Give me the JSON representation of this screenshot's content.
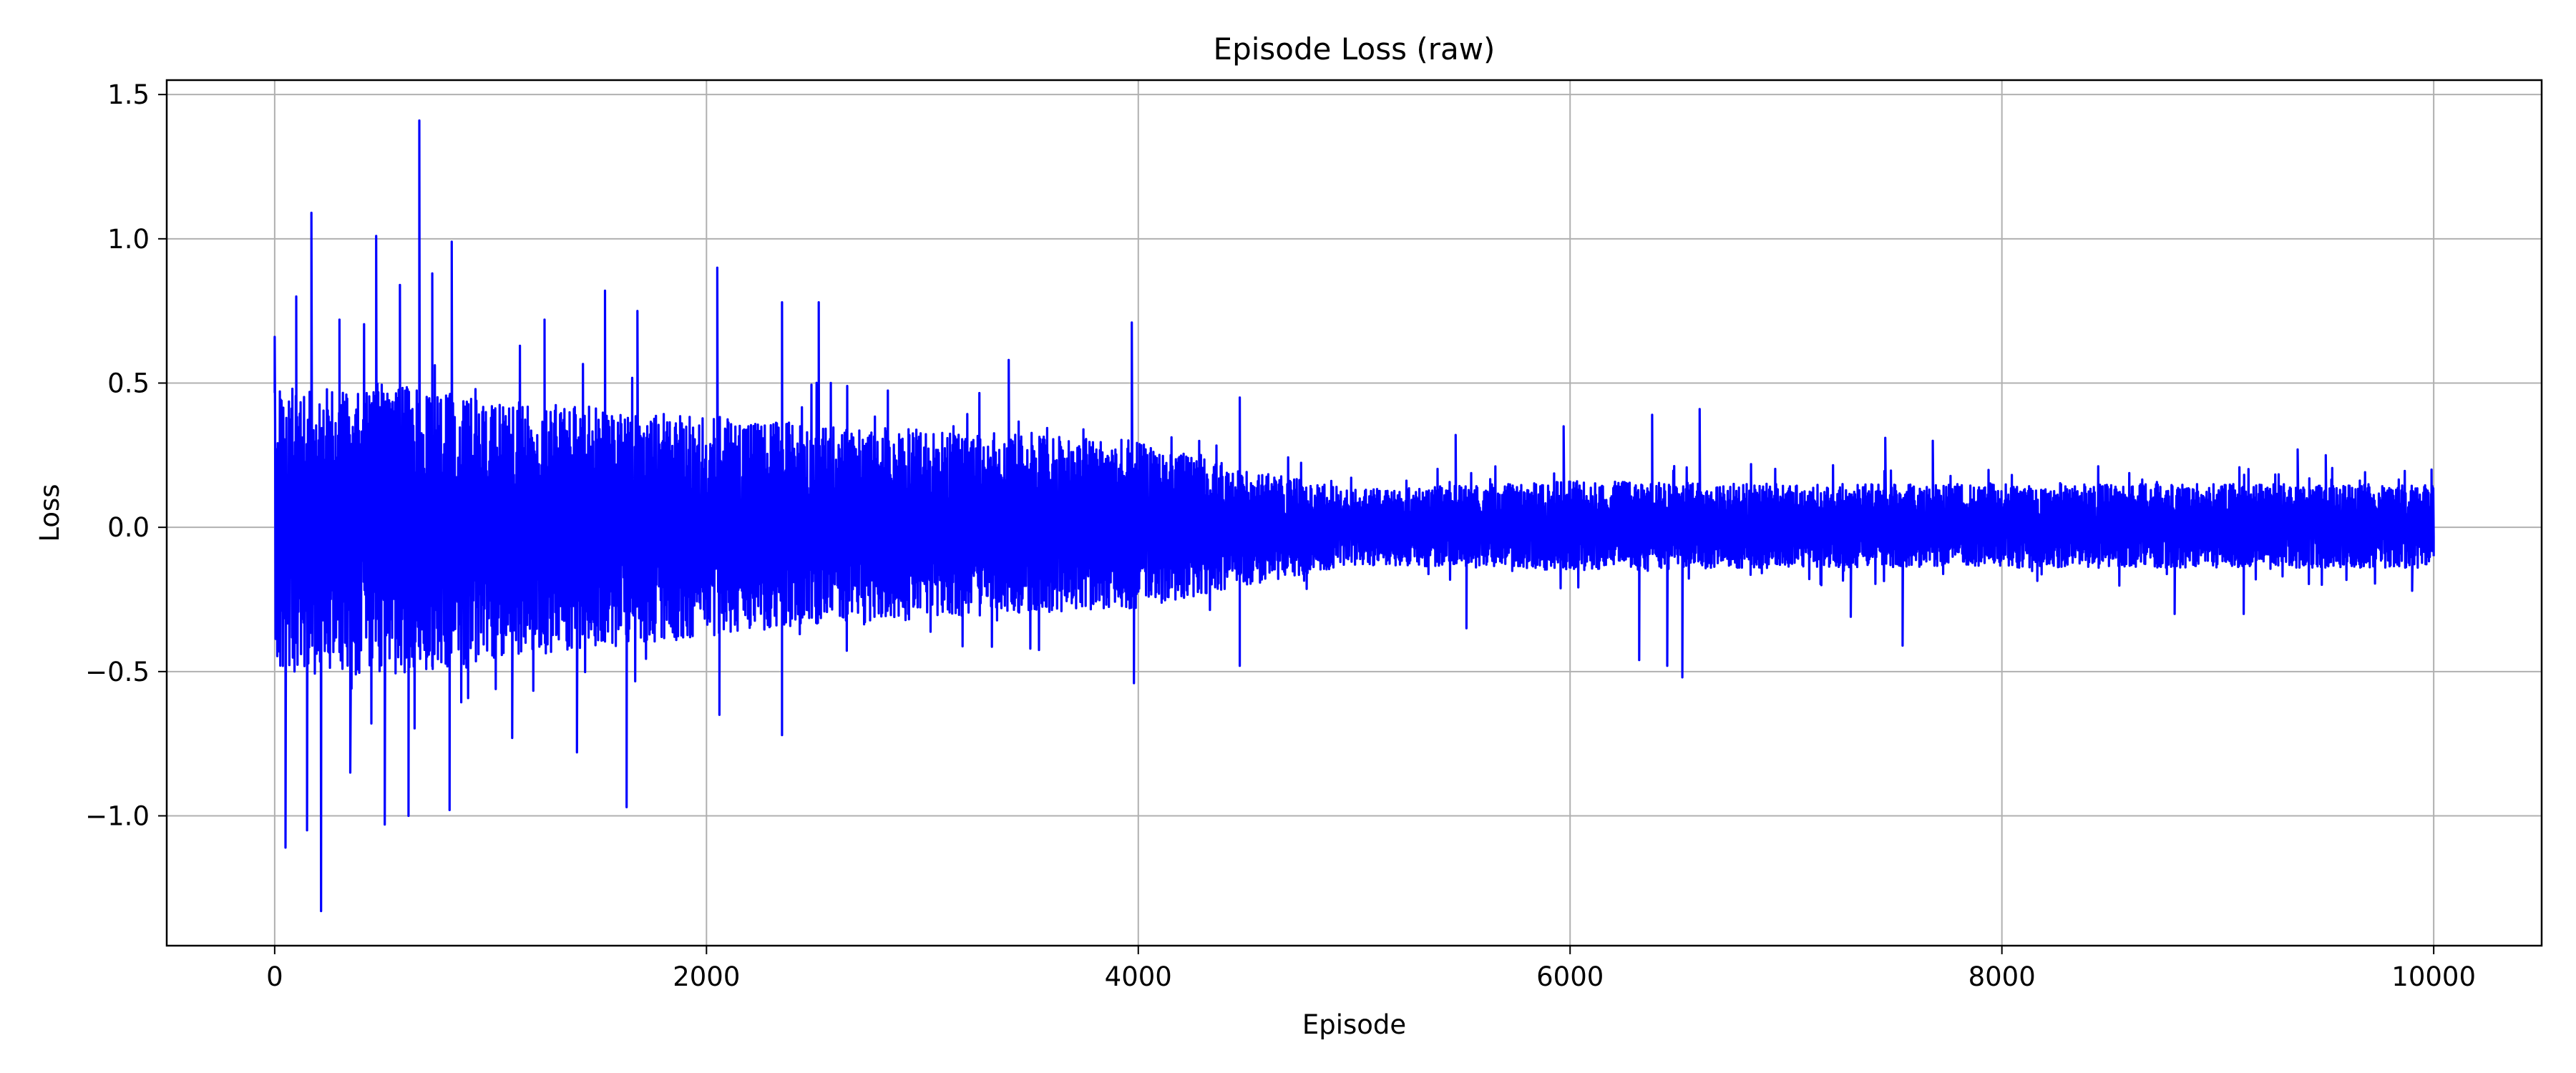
{
  "chart_data": {
    "type": "line",
    "title": "Episode Loss (raw)",
    "xlabel": "Episode",
    "ylabel": "Loss",
    "xlim": [
      -500,
      10500
    ],
    "ylim": [
      -1.45,
      1.55
    ],
    "grid": true,
    "x_ticks": [
      0,
      2000,
      4000,
      6000,
      8000,
      10000
    ],
    "x_tick_labels": [
      "0",
      "2000",
      "4000",
      "6000",
      "8000",
      "10000"
    ],
    "y_ticks": [
      -1.0,
      -0.5,
      0.0,
      0.5,
      1.0,
      1.5
    ],
    "y_tick_labels": [
      "−1.0",
      "−0.5",
      "0.0",
      "0.5",
      "1.0",
      "1.5"
    ],
    "series": [
      {
        "name": "loss",
        "color": "#0000ff",
        "x_start": 0,
        "x_end": 10000,
        "points": 10001,
        "envelope": {
          "episodes": [
            0,
            500,
            1000,
            1500,
            2000,
            2500,
            3000,
            3500,
            4000,
            4500,
            5000,
            6000,
            7000,
            8000,
            9000,
            10000
          ],
          "typical_max": [
            0.48,
            0.5,
            0.44,
            0.42,
            0.38,
            0.36,
            0.34,
            0.32,
            0.3,
            0.2,
            0.13,
            0.16,
            0.15,
            0.15,
            0.15,
            0.15
          ],
          "typical_min": [
            -0.5,
            -0.52,
            -0.46,
            -0.42,
            -0.38,
            -0.34,
            -0.32,
            -0.3,
            -0.28,
            -0.2,
            -0.13,
            -0.15,
            -0.14,
            -0.14,
            -0.14,
            -0.14
          ]
        },
        "spikes": [
          {
            "x": 0,
            "y": 0.66
          },
          {
            "x": 20,
            "y": -0.43
          },
          {
            "x": 50,
            "y": -1.11
          },
          {
            "x": 100,
            "y": 0.8
          },
          {
            "x": 150,
            "y": -1.05
          },
          {
            "x": 170,
            "y": 1.09
          },
          {
            "x": 215,
            "y": -1.33
          },
          {
            "x": 300,
            "y": 0.72
          },
          {
            "x": 350,
            "y": -0.85
          },
          {
            "x": 470,
            "y": 1.01
          },
          {
            "x": 510,
            "y": -1.03
          },
          {
            "x": 580,
            "y": 0.84
          },
          {
            "x": 620,
            "y": -1.0
          },
          {
            "x": 670,
            "y": 1.41
          },
          {
            "x": 730,
            "y": 0.88
          },
          {
            "x": 810,
            "y": -0.98
          },
          {
            "x": 820,
            "y": 0.99
          },
          {
            "x": 1100,
            "y": -0.73
          },
          {
            "x": 1250,
            "y": 0.72
          },
          {
            "x": 1400,
            "y": -0.78
          },
          {
            "x": 1530,
            "y": 0.82
          },
          {
            "x": 1630,
            "y": -0.97
          },
          {
            "x": 1680,
            "y": 0.75
          },
          {
            "x": 2050,
            "y": 0.9
          },
          {
            "x": 2060,
            "y": -0.65
          },
          {
            "x": 2350,
            "y": -0.72
          },
          {
            "x": 2350,
            "y": 0.78
          },
          {
            "x": 2520,
            "y": 0.78
          },
          {
            "x": 3400,
            "y": 0.58
          },
          {
            "x": 3970,
            "y": 0.71
          },
          {
            "x": 3980,
            "y": -0.54
          },
          {
            "x": 4470,
            "y": -0.48
          },
          {
            "x": 4470,
            "y": 0.45
          },
          {
            "x": 5470,
            "y": 0.32
          },
          {
            "x": 5520,
            "y": -0.35
          },
          {
            "x": 5970,
            "y": 0.35
          },
          {
            "x": 6320,
            "y": -0.46
          },
          {
            "x": 6380,
            "y": 0.39
          },
          {
            "x": 6450,
            "y": -0.48
          },
          {
            "x": 6520,
            "y": -0.52
          },
          {
            "x": 6600,
            "y": 0.41
          },
          {
            "x": 7300,
            "y": -0.31
          },
          {
            "x": 7460,
            "y": 0.31
          },
          {
            "x": 7540,
            "y": -0.41
          },
          {
            "x": 7680,
            "y": 0.3
          },
          {
            "x": 8800,
            "y": -0.3
          },
          {
            "x": 9120,
            "y": -0.3
          },
          {
            "x": 9370,
            "y": 0.27
          },
          {
            "x": 9500,
            "y": 0.25
          },
          {
            "x": 9900,
            "y": -0.22
          },
          {
            "x": 9990,
            "y": 0.2
          },
          {
            "x": 10000,
            "y": -0.1
          }
        ]
      }
    ]
  }
}
